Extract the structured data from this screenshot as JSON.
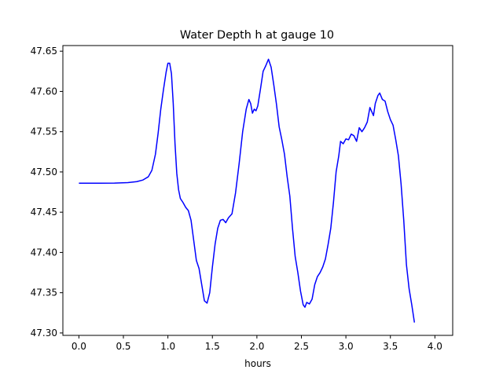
{
  "chart_data": {
    "type": "line",
    "title": "Water Depth h at gauge 10",
    "xlabel": "hours",
    "ylabel": "",
    "xlim": [
      -0.18,
      4.2
    ],
    "ylim": [
      47.297,
      47.657
    ],
    "xticks": [
      0.0,
      0.5,
      1.0,
      1.5,
      2.0,
      2.5,
      3.0,
      3.5,
      4.0
    ],
    "xtick_labels": [
      "0.0",
      "0.5",
      "1.0",
      "1.5",
      "2.0",
      "2.5",
      "3.0",
      "3.5",
      "4.0"
    ],
    "yticks": [
      47.3,
      47.35,
      47.4,
      47.45,
      47.5,
      47.55,
      47.6,
      47.65
    ],
    "ytick_labels": [
      "47.30",
      "47.35",
      "47.40",
      "47.45",
      "47.50",
      "47.55",
      "47.60",
      "47.65"
    ],
    "grid": false,
    "series": [
      {
        "name": "",
        "color": "#0000ff",
        "points": [
          [
            0.0,
            47.486
          ],
          [
            0.2,
            47.486
          ],
          [
            0.4,
            47.4862
          ],
          [
            0.55,
            47.4868
          ],
          [
            0.65,
            47.488
          ],
          [
            0.72,
            47.49
          ],
          [
            0.78,
            47.494
          ],
          [
            0.82,
            47.502
          ],
          [
            0.86,
            47.522
          ],
          [
            0.89,
            47.548
          ],
          [
            0.92,
            47.578
          ],
          [
            0.95,
            47.602
          ],
          [
            0.98,
            47.624
          ],
          [
            1.0,
            47.635
          ],
          [
            1.02,
            47.635
          ],
          [
            1.04,
            47.622
          ],
          [
            1.06,
            47.585
          ],
          [
            1.08,
            47.535
          ],
          [
            1.1,
            47.498
          ],
          [
            1.12,
            47.478
          ],
          [
            1.14,
            47.467
          ],
          [
            1.17,
            47.462
          ],
          [
            1.2,
            47.456
          ],
          [
            1.23,
            47.452
          ],
          [
            1.26,
            47.44
          ],
          [
            1.29,
            47.415
          ],
          [
            1.32,
            47.39
          ],
          [
            1.35,
            47.38
          ],
          [
            1.38,
            47.36
          ],
          [
            1.41,
            47.34
          ],
          [
            1.44,
            47.337
          ],
          [
            1.47,
            47.35
          ],
          [
            1.5,
            47.382
          ],
          [
            1.53,
            47.41
          ],
          [
            1.56,
            47.43
          ],
          [
            1.59,
            47.44
          ],
          [
            1.62,
            47.441
          ],
          [
            1.65,
            47.437
          ],
          [
            1.68,
            47.443
          ],
          [
            1.72,
            47.448
          ],
          [
            1.76,
            47.474
          ],
          [
            1.8,
            47.51
          ],
          [
            1.84,
            47.55
          ],
          [
            1.88,
            47.578
          ],
          [
            1.91,
            47.59
          ],
          [
            1.93,
            47.585
          ],
          [
            1.95,
            47.573
          ],
          [
            1.97,
            47.578
          ],
          [
            1.99,
            47.576
          ],
          [
            2.01,
            47.582
          ],
          [
            2.04,
            47.603
          ],
          [
            2.07,
            47.625
          ],
          [
            2.1,
            47.632
          ],
          [
            2.13,
            47.64
          ],
          [
            2.16,
            47.63
          ],
          [
            2.19,
            47.608
          ],
          [
            2.22,
            47.584
          ],
          [
            2.25,
            47.556
          ],
          [
            2.28,
            47.54
          ],
          [
            2.31,
            47.522
          ],
          [
            2.34,
            47.494
          ],
          [
            2.37,
            47.47
          ],
          [
            2.4,
            47.43
          ],
          [
            2.43,
            47.395
          ],
          [
            2.46,
            47.375
          ],
          [
            2.49,
            47.352
          ],
          [
            2.52,
            47.335
          ],
          [
            2.54,
            47.332
          ],
          [
            2.56,
            47.338
          ],
          [
            2.59,
            47.336
          ],
          [
            2.62,
            47.342
          ],
          [
            2.65,
            47.36
          ],
          [
            2.68,
            47.37
          ],
          [
            2.71,
            47.375
          ],
          [
            2.74,
            47.382
          ],
          [
            2.77,
            47.392
          ],
          [
            2.8,
            47.41
          ],
          [
            2.83,
            47.43
          ],
          [
            2.86,
            47.462
          ],
          [
            2.89,
            47.5
          ],
          [
            2.92,
            47.52
          ],
          [
            2.94,
            47.538
          ],
          [
            2.97,
            47.535
          ],
          [
            3.0,
            47.541
          ],
          [
            3.03,
            47.54
          ],
          [
            3.06,
            47.547
          ],
          [
            3.09,
            47.545
          ],
          [
            3.12,
            47.538
          ],
          [
            3.15,
            47.555
          ],
          [
            3.18,
            47.55
          ],
          [
            3.21,
            47.555
          ],
          [
            3.24,
            47.562
          ],
          [
            3.27,
            47.58
          ],
          [
            3.29,
            47.575
          ],
          [
            3.31,
            47.57
          ],
          [
            3.33,
            47.585
          ],
          [
            3.36,
            47.595
          ],
          [
            3.38,
            47.598
          ],
          [
            3.41,
            47.59
          ],
          [
            3.44,
            47.588
          ],
          [
            3.47,
            47.575
          ],
          [
            3.5,
            47.565
          ],
          [
            3.53,
            47.558
          ],
          [
            3.56,
            47.54
          ],
          [
            3.59,
            47.52
          ],
          [
            3.62,
            47.485
          ],
          [
            3.65,
            47.44
          ],
          [
            3.68,
            47.385
          ],
          [
            3.71,
            47.355
          ],
          [
            3.74,
            47.335
          ],
          [
            3.77,
            47.313
          ]
        ]
      }
    ]
  }
}
